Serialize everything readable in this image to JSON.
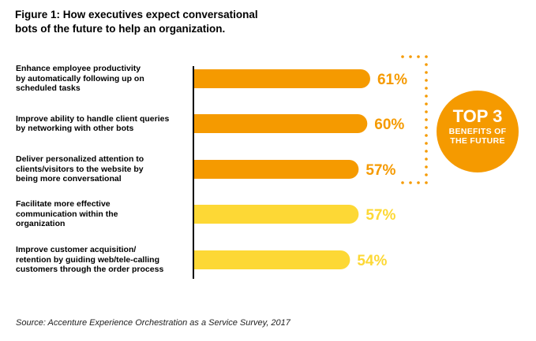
{
  "figure": {
    "title_lines": [
      "Figure 1:  How executives expect conversational",
      "bots of the future to help an organization."
    ],
    "source": "Source: Accenture Experience Orchestration as a Service Survey, 2017"
  },
  "callout": {
    "big": "TOP 3",
    "small_lines": [
      "BENEFITS OF",
      "THE FUTURE"
    ]
  },
  "colors": {
    "top": "#f59a00",
    "rest": "#fdd835",
    "axis": "#000000",
    "dots": "#f59a00"
  },
  "chart_data": {
    "type": "bar",
    "orientation": "horizontal",
    "title": "Figure 1:  How executives expect conversational bots of the future to help an organization.",
    "categories": [
      [
        "Enhance employee productivity",
        "by automatically following up on",
        "scheduled tasks"
      ],
      [
        "Improve ability to handle client queries",
        "by networking with other bots"
      ],
      [
        "Deliver personalized attention to",
        "clients/visitors to the website by",
        "being more conversational"
      ],
      [
        "Facilitate more effective",
        "communication within the",
        "organization"
      ],
      [
        "Improve customer acquisition/",
        "retention by guiding web/tele-calling",
        "customers through the order process"
      ]
    ],
    "values": [
      61,
      60,
      57,
      57,
      54
    ],
    "value_labels": [
      "61%",
      "60%",
      "57%",
      "57%",
      "54%"
    ],
    "highlighted_top": 3,
    "grid": false,
    "legend": "none"
  }
}
